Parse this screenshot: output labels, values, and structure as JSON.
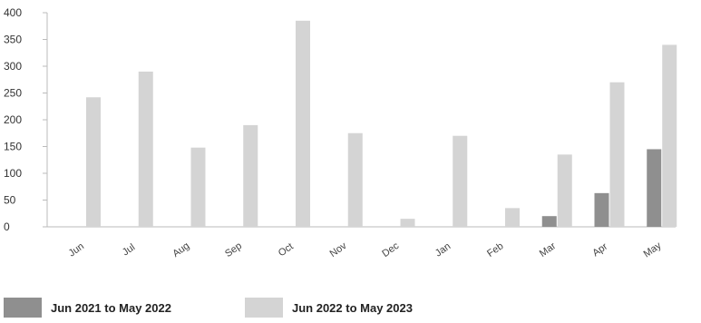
{
  "chart_data": {
    "type": "bar",
    "categories": [
      "Jun",
      "Jul",
      "Aug",
      "Sep",
      "Oct",
      "Nov",
      "Dec",
      "Jan",
      "Feb",
      "Mar",
      "Apr",
      "May"
    ],
    "series": [
      {
        "name": "Jun 2021 to May 2022",
        "color": "#8f8f8f",
        "values": [
          0,
          0,
          0,
          0,
          0,
          0,
          0,
          0,
          0,
          20,
          63,
          145
        ]
      },
      {
        "name": "Jun 2022 to May 2023",
        "color": "#d4d4d4",
        "values": [
          242,
          290,
          148,
          190,
          385,
          175,
          15,
          170,
          35,
          135,
          270,
          340
        ]
      }
    ],
    "yticks": [
      0,
      50,
      100,
      150,
      200,
      250,
      300,
      350,
      400
    ],
    "ylim": [
      0,
      400
    ],
    "grid": false,
    "legend_position": "bottom-left"
  }
}
